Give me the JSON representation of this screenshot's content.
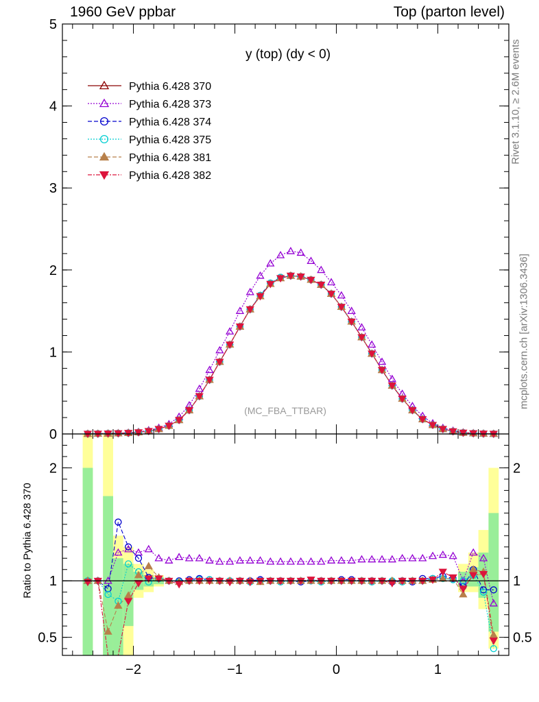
{
  "header": {
    "left": "1960 GeV ppbar",
    "right": "Top (parton level)"
  },
  "side_labels": {
    "rivet": "Rivet 3.1.10, ≥ 2.6M events",
    "mcplots": "mcplots.cern.ch [arXiv:1306.3436]"
  },
  "chart_data": {
    "type": "line",
    "title": "y (top) (dy < 0)",
    "watermark": "(MC_FBA_TTBAR)",
    "legend_position": "top-left",
    "main": {
      "ylim": [
        0,
        5
      ],
      "yticks": [
        0,
        1,
        2,
        3,
        4,
        5
      ],
      "xlim": [
        -2.7,
        1.7
      ]
    },
    "x": [
      -2.45,
      -2.35,
      -2.25,
      -2.15,
      -2.05,
      -1.95,
      -1.85,
      -1.75,
      -1.65,
      -1.55,
      -1.45,
      -1.35,
      -1.25,
      -1.15,
      -1.05,
      -0.95,
      -0.85,
      -0.75,
      -0.65,
      -0.55,
      -0.45,
      -0.35,
      -0.25,
      -0.15,
      -0.05,
      0.05,
      0.15,
      0.25,
      0.35,
      0.45,
      0.55,
      0.65,
      0.75,
      0.85,
      0.95,
      1.05,
      1.15,
      1.25,
      1.35,
      1.45,
      1.55
    ],
    "series": [
      {
        "name": "Pythia 6.428 370",
        "color": "#8b0000",
        "marker": "triangle-up-open",
        "dash": "",
        "values": [
          0.002,
          0.003,
          0.005,
          0.008,
          0.012,
          0.02,
          0.035,
          0.06,
          0.1,
          0.17,
          0.29,
          0.46,
          0.66,
          0.88,
          1.09,
          1.31,
          1.52,
          1.68,
          1.83,
          1.9,
          1.93,
          1.92,
          1.88,
          1.82,
          1.71,
          1.55,
          1.37,
          1.18,
          0.98,
          0.78,
          0.59,
          0.43,
          0.29,
          0.18,
          0.11,
          0.06,
          0.032,
          0.015,
          0.008,
          0.004,
          0.002
        ]
      },
      {
        "name": "Pythia 6.428 373",
        "color": "#9400d3",
        "marker": "triangle-up-open",
        "dash": "2,2",
        "values": [
          0.002,
          0.003,
          0.006,
          0.01,
          0.015,
          0.025,
          0.045,
          0.075,
          0.12,
          0.21,
          0.35,
          0.55,
          0.78,
          1.02,
          1.25,
          1.5,
          1.73,
          1.93,
          2.08,
          2.18,
          2.23,
          2.21,
          2.11,
          2.0,
          1.85,
          1.69,
          1.5,
          1.3,
          1.09,
          0.88,
          0.67,
          0.49,
          0.34,
          0.22,
          0.13,
          0.074,
          0.04,
          0.019,
          0.01,
          0.005,
          0.002
        ]
      },
      {
        "name": "Pythia 6.428 374",
        "color": "#0000cd",
        "marker": "circle-open",
        "dash": "6,3",
        "values": [
          0.002,
          0.003,
          0.005,
          0.008,
          0.012,
          0.02,
          0.035,
          0.06,
          0.1,
          0.17,
          0.29,
          0.46,
          0.66,
          0.88,
          1.09,
          1.31,
          1.52,
          1.69,
          1.84,
          1.91,
          1.93,
          1.92,
          1.88,
          1.82,
          1.71,
          1.55,
          1.37,
          1.18,
          0.98,
          0.78,
          0.59,
          0.43,
          0.29,
          0.18,
          0.11,
          0.06,
          0.032,
          0.015,
          0.008,
          0.004,
          0.002
        ]
      },
      {
        "name": "Pythia 6.428 375",
        "color": "#00ced1",
        "marker": "circle-open",
        "dash": "2,2",
        "values": [
          0.002,
          0.003,
          0.005,
          0.008,
          0.012,
          0.02,
          0.035,
          0.06,
          0.1,
          0.17,
          0.29,
          0.46,
          0.66,
          0.88,
          1.09,
          1.31,
          1.52,
          1.69,
          1.84,
          1.91,
          1.93,
          1.92,
          1.88,
          1.82,
          1.71,
          1.55,
          1.37,
          1.18,
          0.98,
          0.78,
          0.59,
          0.43,
          0.29,
          0.18,
          0.11,
          0.06,
          0.032,
          0.015,
          0.008,
          0.004,
          0.002
        ]
      },
      {
        "name": "Pythia 6.428 381",
        "color": "#b8804a",
        "marker": "triangle-up-filled",
        "dash": "6,3",
        "values": [
          0.002,
          0.003,
          0.005,
          0.008,
          0.012,
          0.02,
          0.035,
          0.06,
          0.1,
          0.17,
          0.29,
          0.46,
          0.66,
          0.88,
          1.09,
          1.31,
          1.52,
          1.68,
          1.83,
          1.9,
          1.93,
          1.92,
          1.88,
          1.82,
          1.71,
          1.55,
          1.37,
          1.18,
          0.98,
          0.78,
          0.59,
          0.43,
          0.29,
          0.18,
          0.11,
          0.06,
          0.032,
          0.015,
          0.008,
          0.004,
          0.002
        ]
      },
      {
        "name": "Pythia 6.428 382",
        "color": "#dc143c",
        "marker": "triangle-down-filled",
        "dash": "6,2,2,2",
        "values": [
          0.002,
          0.003,
          0.005,
          0.008,
          0.012,
          0.02,
          0.035,
          0.06,
          0.1,
          0.17,
          0.29,
          0.46,
          0.66,
          0.88,
          1.09,
          1.31,
          1.52,
          1.68,
          1.83,
          1.9,
          1.93,
          1.92,
          1.88,
          1.82,
          1.71,
          1.55,
          1.37,
          1.18,
          0.98,
          0.78,
          0.59,
          0.43,
          0.29,
          0.18,
          0.11,
          0.06,
          0.032,
          0.015,
          0.008,
          0.004,
          0.002
        ]
      }
    ],
    "ratio": {
      "ylabel": "Ratio to Pythia 6.428 370",
      "ylim": [
        0.34,
        2.3
      ],
      "yticks": [
        0.5,
        1,
        2
      ],
      "xticks": [
        -2,
        -1,
        0,
        1
      ],
      "band_x": [
        -2.45,
        -2.25,
        -2.15,
        -2.05,
        -1.95,
        -1.85,
        -1.75,
        1.25,
        1.35,
        1.45,
        1.55
      ],
      "band_yellow": [
        [
          0.3,
          2.3
        ],
        [
          0.3,
          2.3
        ],
        [
          0.3,
          1.4
        ],
        [
          0.3,
          1.3
        ],
        [
          0.85,
          1.15
        ],
        [
          0.9,
          1.1
        ],
        [
          0.95,
          1.05
        ],
        [
          0.9,
          1.15
        ],
        [
          0.9,
          1.25
        ],
        [
          0.75,
          1.45
        ],
        [
          0.4,
          2.0
        ]
      ],
      "band_green": [
        [
          0.3,
          2.0
        ],
        [
          0.3,
          1.75
        ],
        [
          0.3,
          1.2
        ],
        [
          0.6,
          1.15
        ],
        [
          0.92,
          1.08
        ],
        [
          0.95,
          1.05
        ],
        [
          0.97,
          1.03
        ],
        [
          0.95,
          1.08
        ],
        [
          0.95,
          1.12
        ],
        [
          0.85,
          1.25
        ],
        [
          0.55,
          1.6
        ]
      ],
      "series": [
        {
          "values": [
            1,
            1,
            1,
            1,
            1,
            1,
            1,
            1,
            1,
            1,
            1,
            1,
            1,
            1,
            1,
            1,
            1,
            1,
            1,
            1,
            1,
            1,
            1,
            1,
            1,
            1,
            1,
            1,
            1,
            1,
            1,
            1,
            1,
            1,
            1,
            1,
            1,
            1,
            1,
            1,
            1
          ]
        },
        {
          "values": [
            1.0,
            1.0,
            1.0,
            1.25,
            1.28,
            1.25,
            1.28,
            1.2,
            1.18,
            1.21,
            1.2,
            1.2,
            1.18,
            1.17,
            1.17,
            1.18,
            1.18,
            1.18,
            1.17,
            1.17,
            1.17,
            1.17,
            1.17,
            1.17,
            1.18,
            1.18,
            1.18,
            1.19,
            1.19,
            1.19,
            1.19,
            1.2,
            1.2,
            1.2,
            1.22,
            1.23,
            1.22,
            1.0,
            1.25,
            1.2,
            0.8
          ]
        },
        {
          "values": [
            1.0,
            1.0,
            0.93,
            1.52,
            1.3,
            1.2,
            1.03,
            1.02,
            1.0,
            1.0,
            1.01,
            1.02,
            1.01,
            1.0,
            1.0,
            1.0,
            1.0,
            1.01,
            1.0,
            1.0,
            1.0,
            0.99,
            1.0,
            1.0,
            1.0,
            1.01,
            1.01,
            1.0,
            1.0,
            1.0,
            0.99,
            1.0,
            0.99,
            1.02,
            1.02,
            1.04,
            1.02,
            0.95,
            1.1,
            0.92,
            0.92
          ]
        },
        {
          "values": [
            1.0,
            1.0,
            0.88,
            0.82,
            1.15,
            1.08,
            0.99,
            1.02,
            1.0,
            0.99,
            1.0,
            1.01,
            1.01,
            1.0,
            1.0,
            1.0,
            0.99,
            1.0,
            1.0,
            0.99,
            1.0,
            1.0,
            1.0,
            0.99,
            1.0,
            1.0,
            1.0,
            1.0,
            0.99,
            1.0,
            1.0,
            0.99,
            1.0,
            1.0,
            1.02,
            1.02,
            1.01,
            1.0,
            1.05,
            0.9,
            0.4
          ]
        },
        {
          "values": [
            1.0,
            1.0,
            0.55,
            0.78,
            0.87,
            1.05,
            1.13,
            1.03,
            1.0,
            0.99,
            1.0,
            1.0,
            1.0,
            1.0,
            1.0,
            1.0,
            1.0,
            0.99,
            1.0,
            1.0,
            1.0,
            1.0,
            1.0,
            1.0,
            1.0,
            1.0,
            1.0,
            1.0,
            1.0,
            1.0,
            1.0,
            1.0,
            1.0,
            1.0,
            1.01,
            1.02,
            1.02,
            0.88,
            1.1,
            1.08,
            0.52
          ]
        },
        {
          "values": [
            0.99,
            1.0,
            0.3,
            0.3,
            0.82,
            0.98,
            1.02,
            1.02,
            1.0,
            0.97,
            1.0,
            1.0,
            1.0,
            1.0,
            0.99,
            1.0,
            0.99,
            1.0,
            1.0,
            1.0,
            1.0,
            1.0,
            1.01,
            1.0,
            1.0,
            1.0,
            1.0,
            1.0,
            1.0,
            1.0,
            0.98,
            1.0,
            1.0,
            1.0,
            1.01,
            1.08,
            1.03,
            0.93,
            1.05,
            1.06,
            0.47
          ]
        }
      ]
    }
  }
}
